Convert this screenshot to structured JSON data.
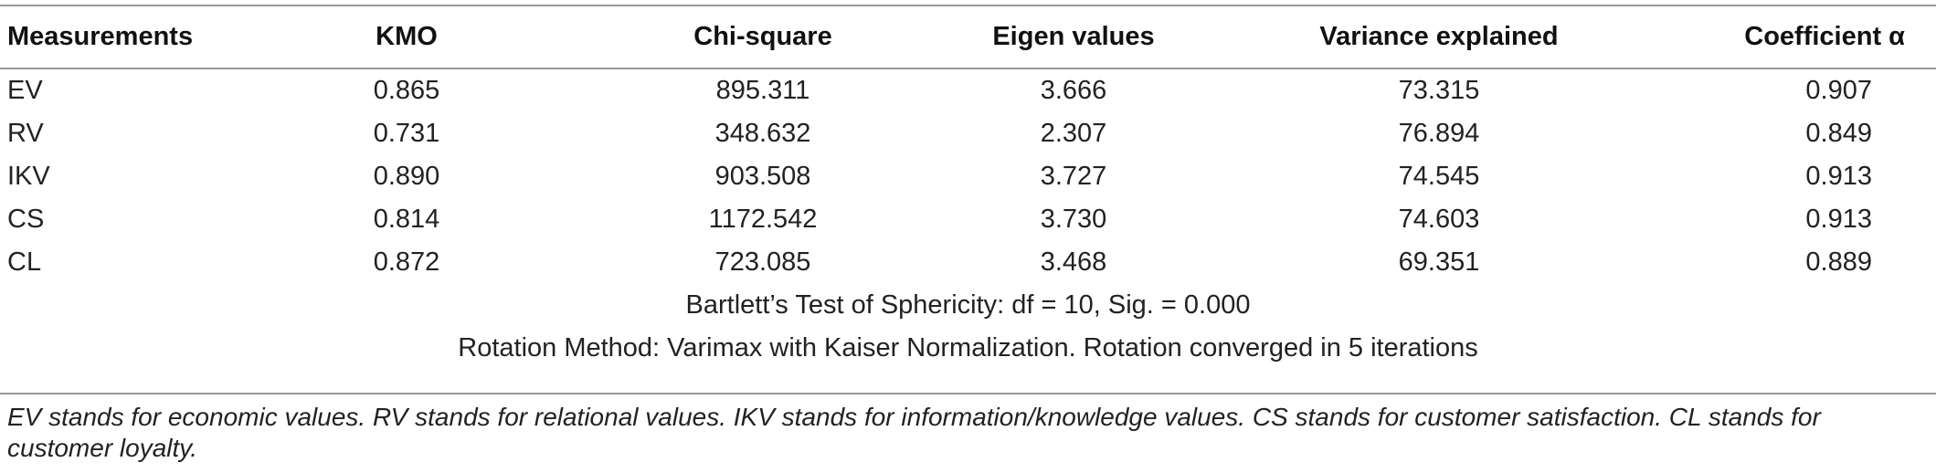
{
  "table": {
    "headers": [
      "Measurements",
      "KMO",
      "Chi-square",
      "Eigen values",
      "Variance explained",
      "Coefficient α"
    ],
    "rows": [
      [
        "EV",
        "0.865",
        "895.311",
        "3.666",
        "73.315",
        "0.907"
      ],
      [
        "RV",
        "0.731",
        "348.632",
        "2.307",
        "76.894",
        "0.849"
      ],
      [
        "IKV",
        "0.890",
        "903.508",
        "3.727",
        "74.545",
        "0.913"
      ],
      [
        "CS",
        "0.814",
        "1172.542",
        "3.730",
        "74.603",
        "0.913"
      ],
      [
        "CL",
        "0.872",
        "723.085",
        "3.468",
        "69.351",
        "0.889"
      ]
    ],
    "bartlett": "Bartlett’s Test of Sphericity: df = 10, Sig. = 0.000",
    "rotation": "Rotation Method: Varimax with Kaiser Normalization. Rotation converged in 5 iterations"
  },
  "footnote": "EV stands for economic values. RV stands for relational values. IKV stands for information/knowledge values. CS stands for customer satisfaction. CL stands for customer loyalty."
}
